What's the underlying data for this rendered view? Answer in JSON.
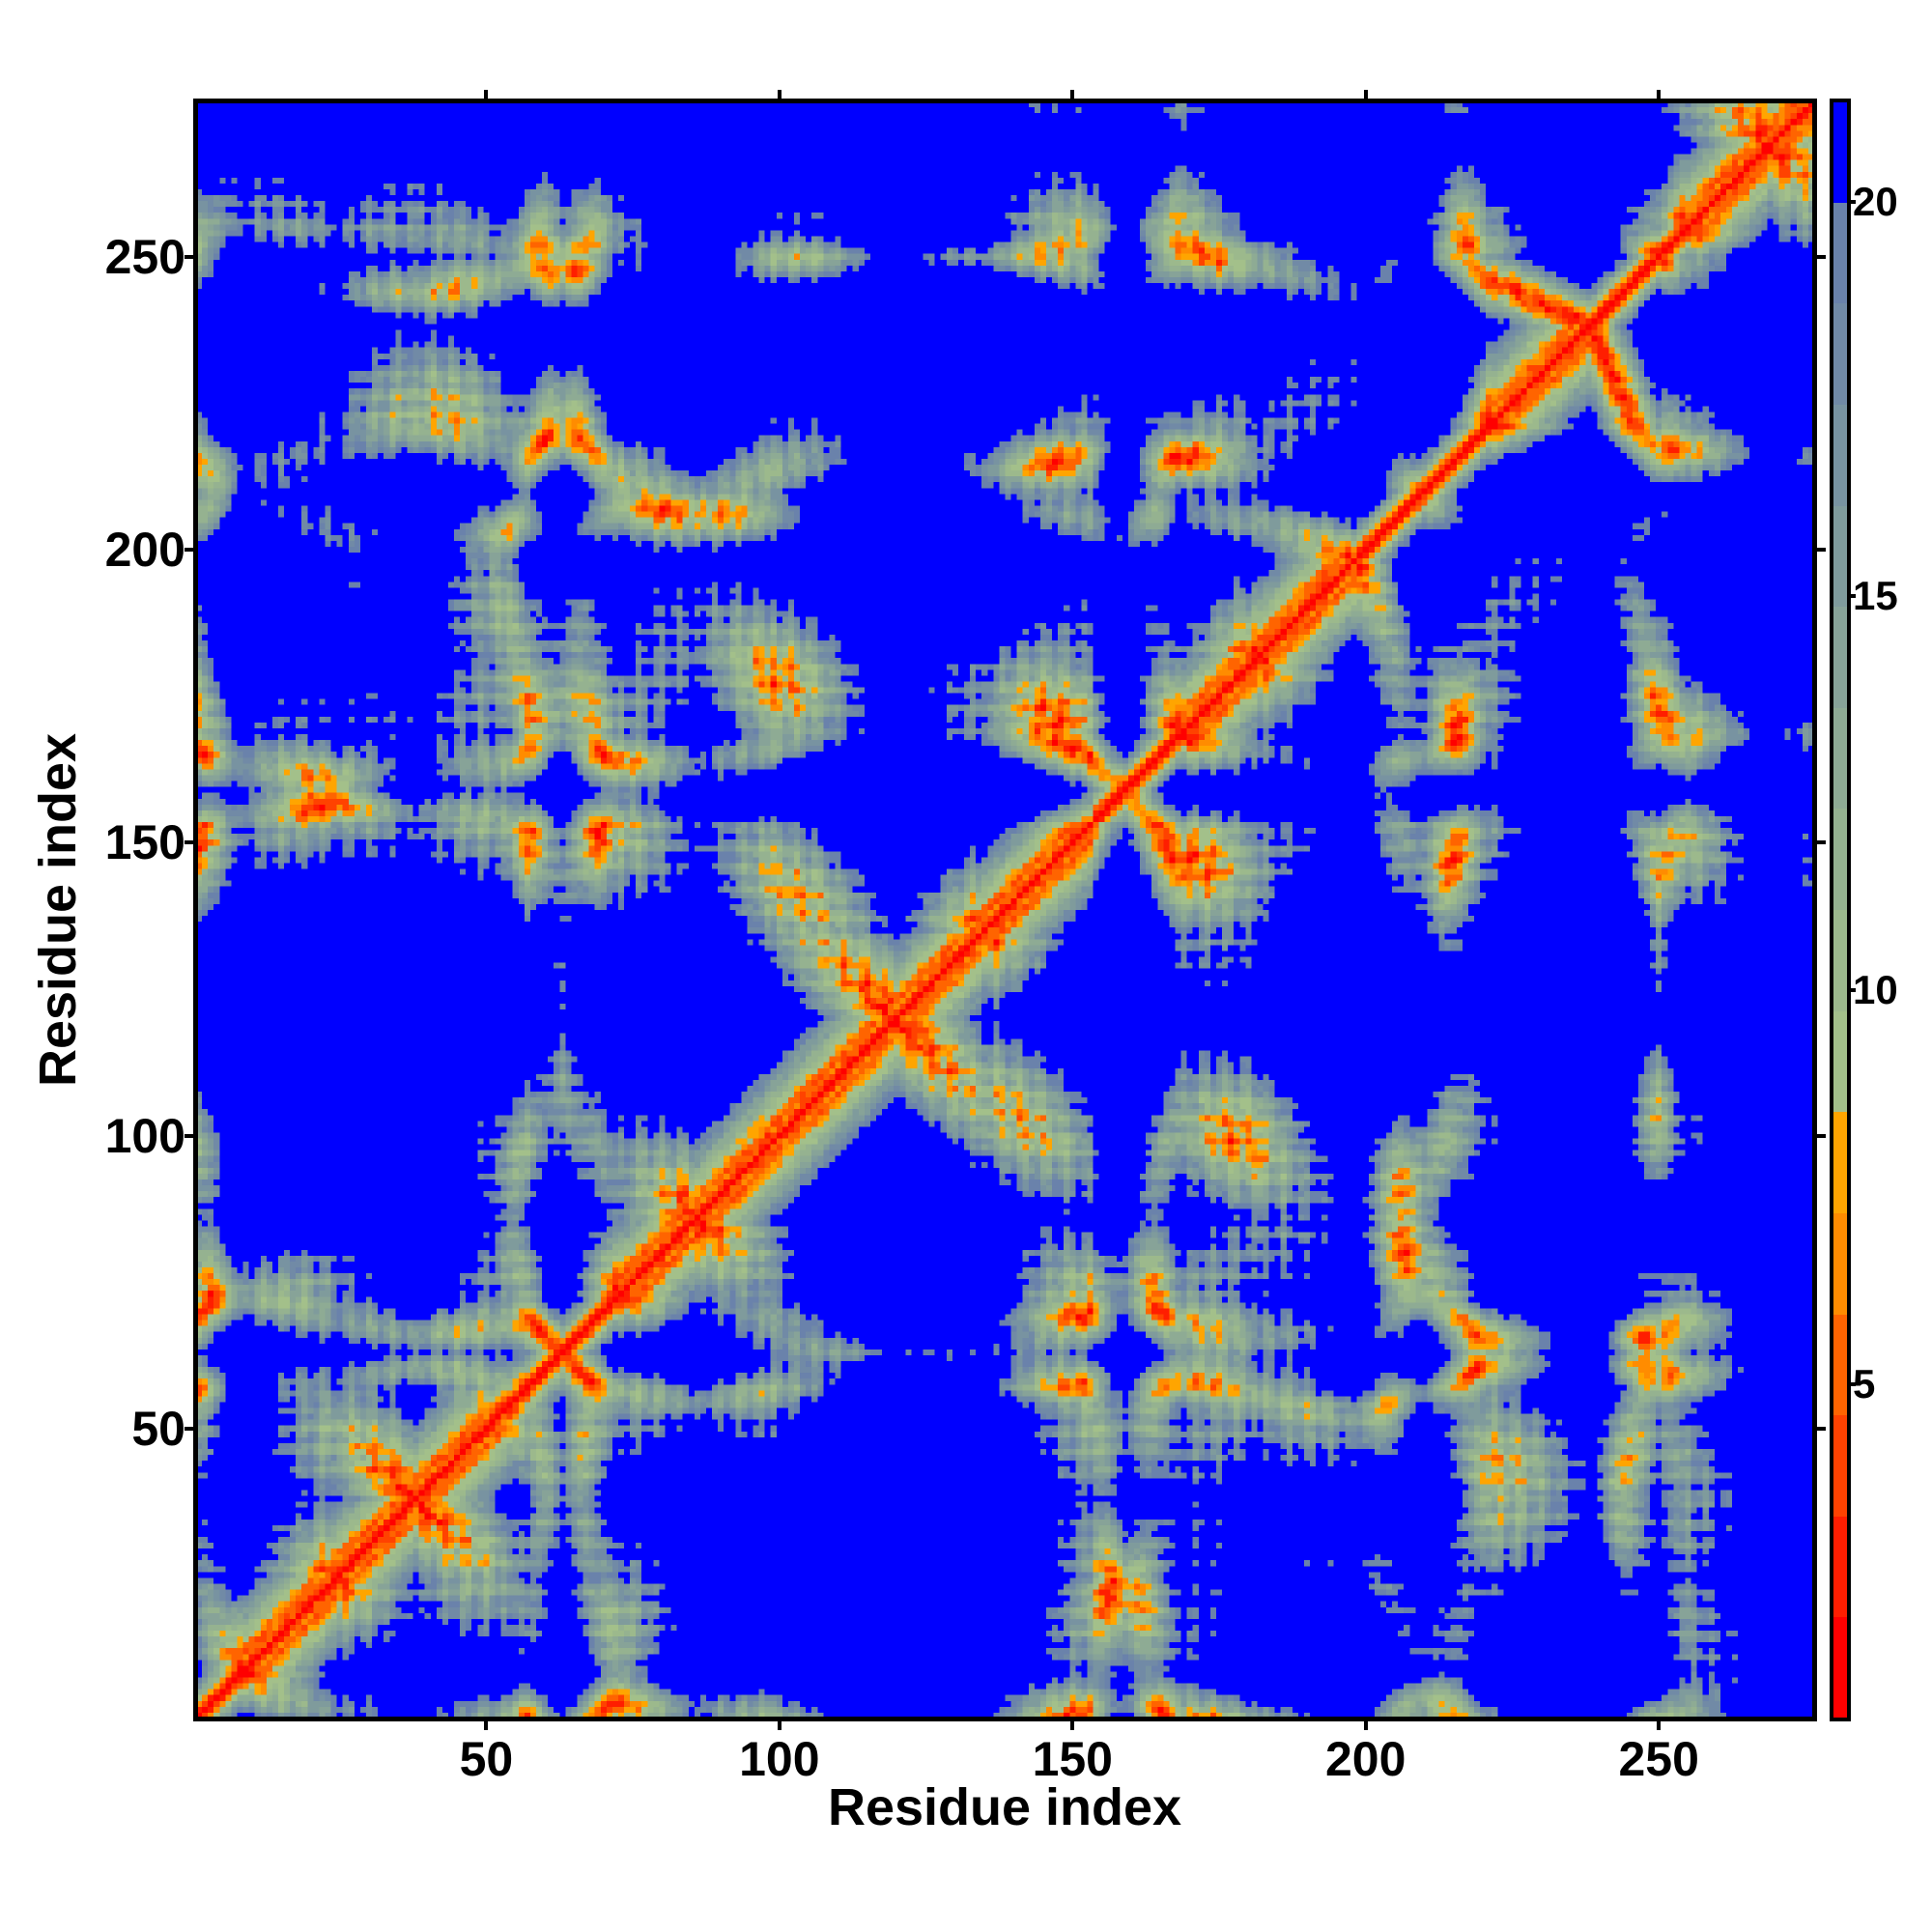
{
  "chart_data": {
    "type": "heatmap",
    "title": "",
    "xlabel": "Residue index",
    "ylabel": "Residue index",
    "n_residues": 276,
    "xlim": [
      0.5,
      276.5
    ],
    "ylim": [
      0.5,
      276.5
    ],
    "x_ticks": [
      50,
      100,
      150,
      200,
      250
    ],
    "y_ticks": [
      50,
      100,
      150,
      200,
      250
    ],
    "value_description": "pairwise residue distance (capped)",
    "colorbar": {
      "range": [
        0.76,
        21.27
      ],
      "ticks": [
        5,
        10,
        15,
        20
      ],
      "levels": 16,
      "colors": [
        "#ff0000",
        "#ff1e00",
        "#ff4200",
        "#ff6400",
        "#ff8c00",
        "#ffa500",
        "#a3c08a",
        "#9cb98c",
        "#95b290",
        "#8eab94",
        "#87a398",
        "#7f9b9c",
        "#7893a1",
        "#718aa6",
        "#6a82ab",
        "#0000ff"
      ]
    },
    "generator": {
      "seed": 1337,
      "helix_fraction": 0.45
    }
  }
}
